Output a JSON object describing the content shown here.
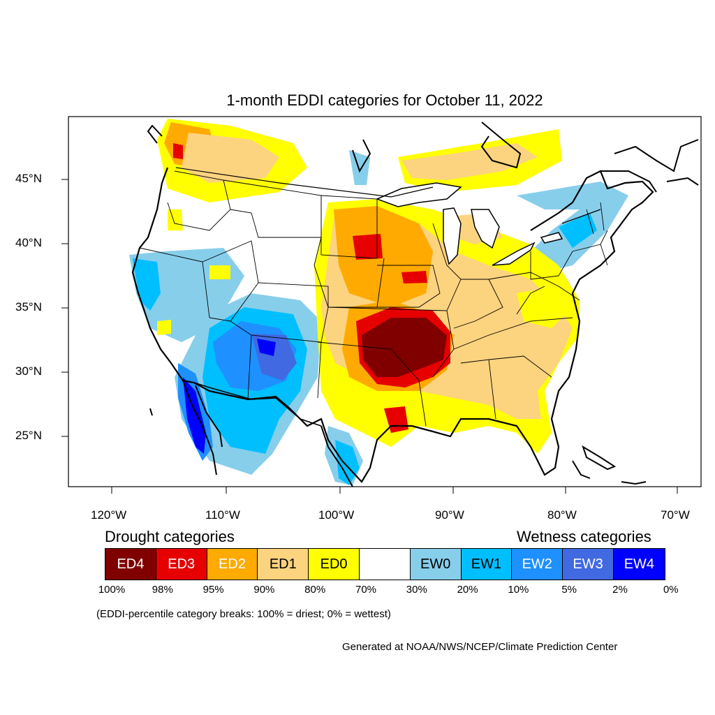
{
  "title": "1-month EDDI categories for October 11, 2022",
  "lat_labels": [
    "45°N",
    "40°N",
    "35°N",
    "30°N",
    "25°N"
  ],
  "lon_labels": [
    "120°W",
    "110°W",
    "100°W",
    "90°W",
    "80°W",
    "70°W"
  ],
  "legend": {
    "drought_heading": "Drought categories",
    "wetness_heading": "Wetness categories",
    "categories": [
      {
        "label": "ED4",
        "color": "#800000",
        "text_color": "#ffffff"
      },
      {
        "label": "ED3",
        "color": "#e60000",
        "text_color": "#ffffff"
      },
      {
        "label": "ED2",
        "color": "#ffaa00",
        "text_color": "#ffffff"
      },
      {
        "label": "ED1",
        "color": "#fcd37f",
        "text_color": "#000000"
      },
      {
        "label": "ED0",
        "color": "#ffff00",
        "text_color": "#000000"
      },
      {
        "label": "",
        "color": "#ffffff",
        "text_color": "#000000"
      },
      {
        "label": "EW0",
        "color": "#87ceeb",
        "text_color": "#000000"
      },
      {
        "label": "EW1",
        "color": "#00bfff",
        "text_color": "#000000"
      },
      {
        "label": "EW2",
        "color": "#1e90ff",
        "text_color": "#ffffff"
      },
      {
        "label": "EW3",
        "color": "#4169e1",
        "text_color": "#ffffff"
      },
      {
        "label": "EW4",
        "color": "#0000ff",
        "text_color": "#ffffff"
      }
    ],
    "percentiles": [
      "100%",
      "98%",
      "95%",
      "90%",
      "80%",
      "70%",
      "30%",
      "20%",
      "10%",
      "5%",
      "2%",
      "0%"
    ],
    "note": "(EDDI-percentile category breaks: 100% = driest; 0% = wettest)"
  },
  "credit": "Generated at NOAA/NWS/NCEP/Climate Prediction Center"
}
